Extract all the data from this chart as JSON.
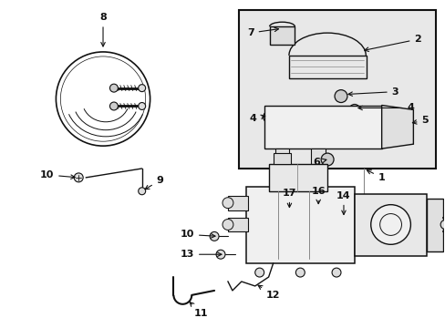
{
  "background_color": "#ffffff",
  "fig_width": 4.89,
  "fig_height": 3.6,
  "dpi": 100,
  "line_color": "#111111",
  "gray_fill": "#e8e8e8",
  "inset_bg": "#e8e8e8"
}
